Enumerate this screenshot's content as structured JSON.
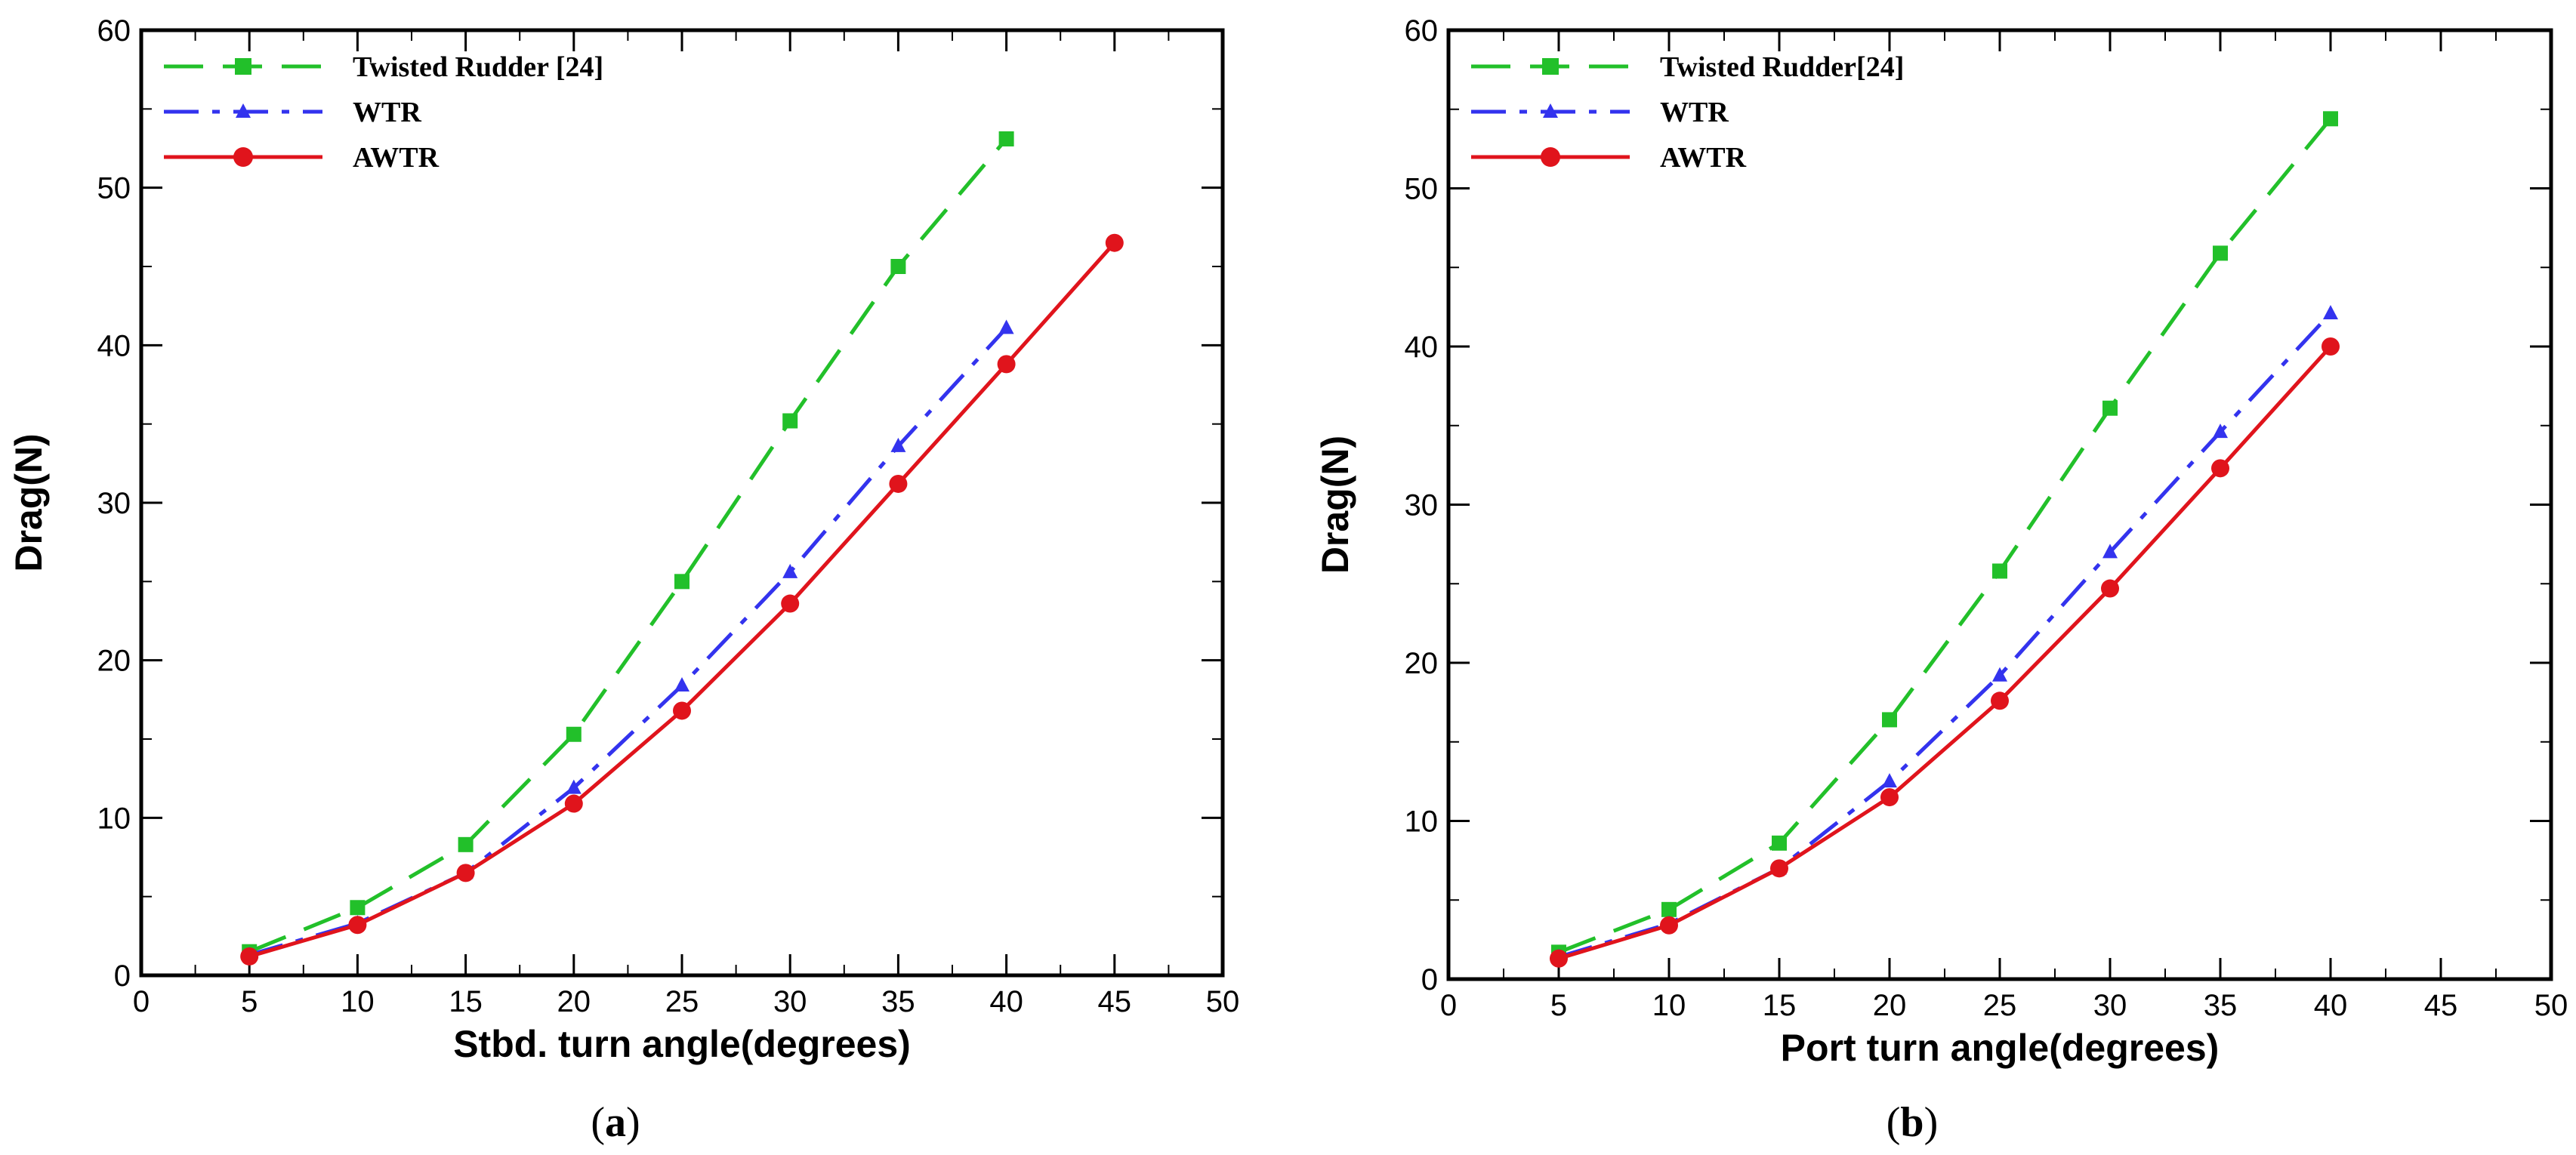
{
  "chart_data": [
    {
      "type": "line",
      "panel_label": "(a)",
      "caption_open": "(",
      "caption_letter": "a",
      "caption_close": ")",
      "xlabel": "Stbd. turn angle(degrees)",
      "ylabel": "Drag(N)",
      "xlim": [
        0,
        50
      ],
      "ylim": [
        0,
        60
      ],
      "xticks": [
        0,
        5,
        10,
        15,
        20,
        25,
        30,
        35,
        40,
        45,
        50
      ],
      "yticks": [
        0,
        10,
        20,
        30,
        40,
        50,
        60
      ],
      "legend_position": "top-left",
      "series": [
        {
          "name": "Twisted Rudder [24]",
          "style": "dashed",
          "marker": "square",
          "color": "#22c02a",
          "x": [
            5,
            10,
            15,
            20,
            25,
            30,
            35,
            40
          ],
          "y": [
            1.5,
            4.3,
            8.3,
            15.3,
            25.0,
            35.2,
            45.0,
            53.1
          ]
        },
        {
          "name": "WTR",
          "style": "dashdot",
          "marker": "triangle",
          "color": "#3333ee",
          "x": [
            5,
            10,
            15,
            20,
            25,
            30,
            35,
            40
          ],
          "y": [
            1.3,
            3.3,
            6.5,
            11.9,
            18.4,
            25.6,
            33.6,
            41.1
          ]
        },
        {
          "name": "AWTR",
          "style": "solid",
          "marker": "circle",
          "color": "#e0141c",
          "x": [
            5,
            10,
            15,
            20,
            25,
            30,
            35,
            40,
            45
          ],
          "y": [
            1.2,
            3.2,
            6.5,
            10.9,
            16.8,
            23.6,
            31.2,
            38.8,
            46.5
          ]
        }
      ]
    },
    {
      "type": "line",
      "panel_label": "(b)",
      "caption_open": "(",
      "caption_letter": "b",
      "caption_close": ")",
      "xlabel": "Port turn angle(degrees)",
      "ylabel": "Drag(N)",
      "xlim": [
        0,
        50
      ],
      "ylim": [
        0,
        60
      ],
      "xticks": [
        0,
        5,
        10,
        15,
        20,
        25,
        30,
        35,
        40,
        45,
        50
      ],
      "yticks": [
        0,
        10,
        20,
        30,
        40,
        50,
        60
      ],
      "legend_position": "top-left",
      "series": [
        {
          "name": "Twisted Rudder[24]",
          "style": "dashed",
          "marker": "square",
          "color": "#22c02a",
          "x": [
            5,
            10,
            15,
            20,
            25,
            30,
            35,
            40
          ],
          "y": [
            1.7,
            4.4,
            8.6,
            16.4,
            25.8,
            36.1,
            45.9,
            54.4
          ]
        },
        {
          "name": "WTR",
          "style": "dashdot",
          "marker": "triangle",
          "color": "#3333ee",
          "x": [
            5,
            10,
            15,
            20,
            25,
            30,
            35,
            40
          ],
          "y": [
            1.4,
            3.5,
            7.0,
            12.5,
            19.2,
            27.0,
            34.6,
            42.1
          ]
        },
        {
          "name": "AWTR",
          "style": "solid",
          "marker": "circle",
          "color": "#e0141c",
          "x": [
            5,
            10,
            15,
            20,
            25,
            30,
            35,
            40
          ],
          "y": [
            1.3,
            3.4,
            7.0,
            11.5,
            17.6,
            24.7,
            32.3,
            40.0
          ]
        }
      ]
    }
  ]
}
